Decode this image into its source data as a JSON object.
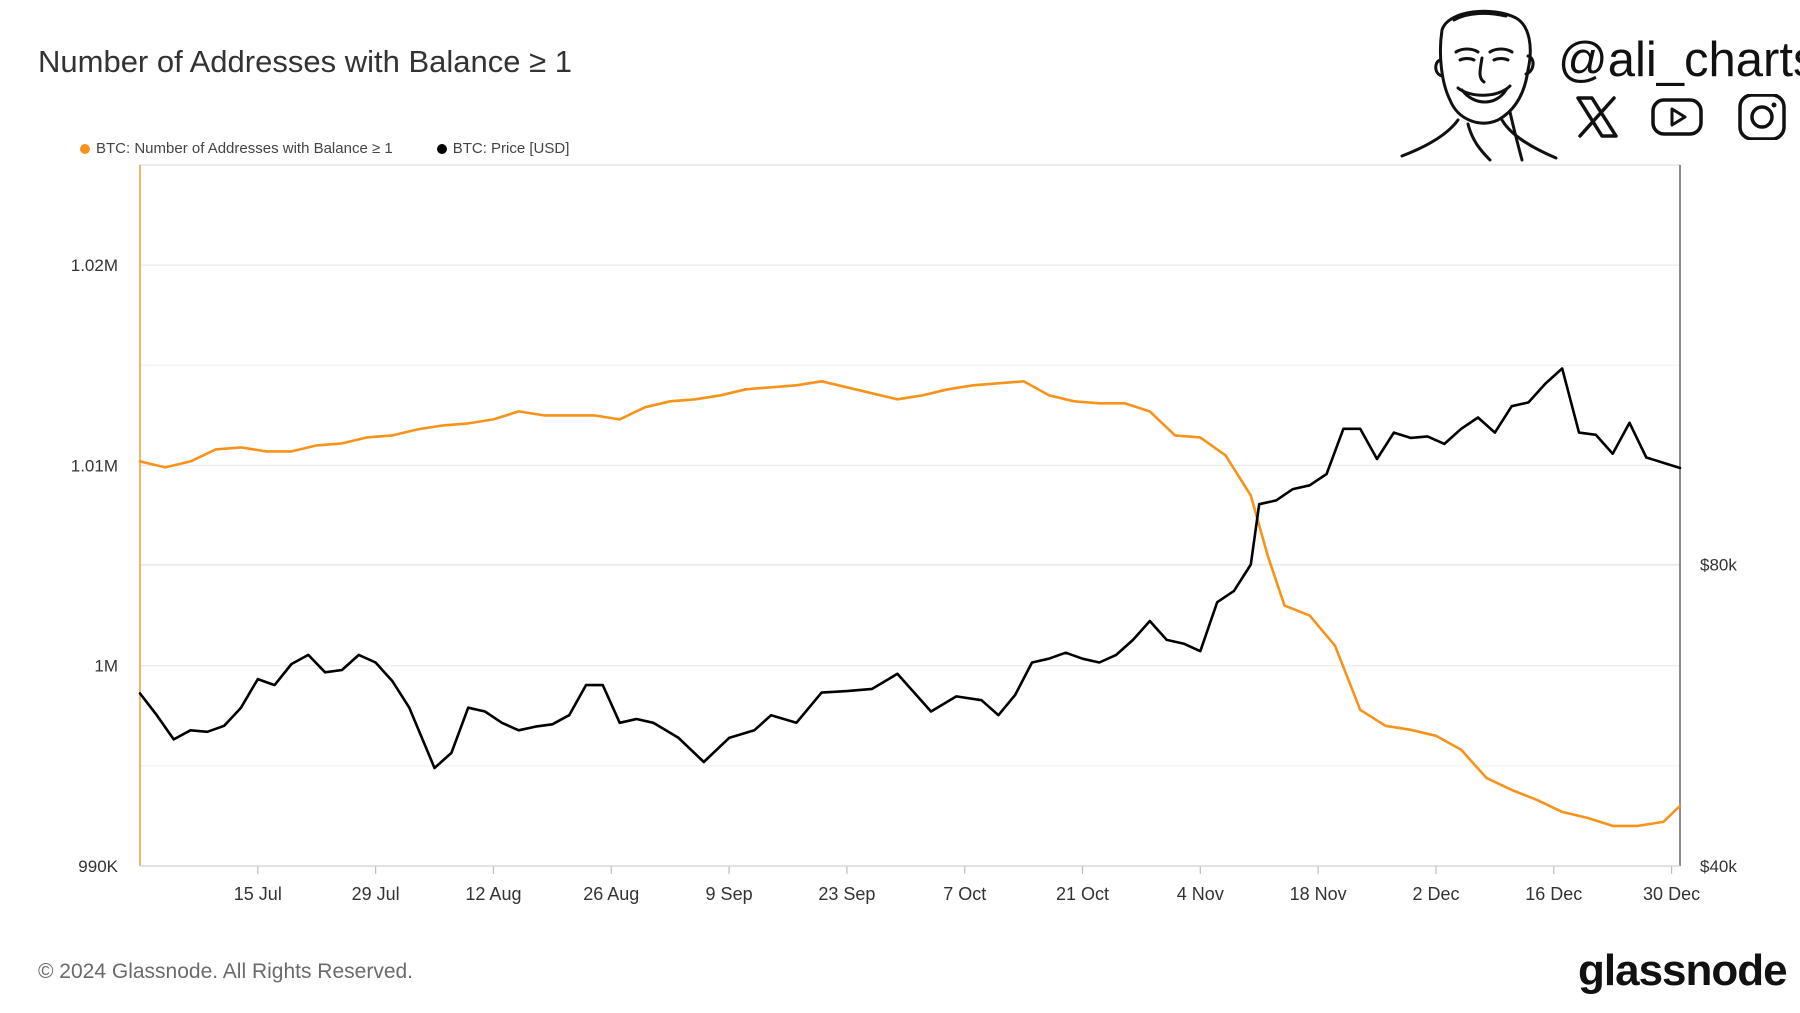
{
  "header": {
    "title": "Number of Addresses with Balance ≥ 1",
    "handle": "@ali_charts"
  },
  "social_icons": [
    "x-icon",
    "youtube-icon",
    "instagram-icon"
  ],
  "legend": [
    {
      "label": "BTC: Number of Addresses with Balance ≥ 1",
      "color": "#f7931a"
    },
    {
      "label": "BTC: Price [USD]",
      "color": "#000000"
    }
  ],
  "footer": {
    "copyright": "© 2024 Glassnode. All Rights Reserved.",
    "brand": "glassnode"
  },
  "chart_data": {
    "type": "line",
    "x_start": "2024-07-01",
    "x_end": "2024-12-31",
    "xticks": [
      "15 Jul",
      "29 Jul",
      "12 Aug",
      "26 Aug",
      "9 Sep",
      "23 Sep",
      "7 Oct",
      "21 Oct",
      "4 Nov",
      "18 Nov",
      "2 Dec",
      "16 Dec",
      "30 Dec"
    ],
    "y_left": {
      "ticks": [
        "990K",
        "1M",
        "1.01M",
        "1.02M"
      ],
      "tick_values": [
        990000,
        1000000,
        1010000,
        1020000
      ],
      "ylim": [
        990000,
        1025000
      ]
    },
    "y_right": {
      "ticks": [
        "$40k",
        "$80k"
      ],
      "tick_values": [
        40000,
        80000
      ],
      "ylim": [
        40000,
        133000
      ]
    },
    "series": [
      {
        "name": "BTC: Number of Addresses with Balance ≥ 1",
        "axis": "left",
        "color": "#f7931a",
        "points": [
          [
            "2024-07-01",
            1010200
          ],
          [
            "2024-07-04",
            1009900
          ],
          [
            "2024-07-07",
            1010200
          ],
          [
            "2024-07-10",
            1010800
          ],
          [
            "2024-07-13",
            1010900
          ],
          [
            "2024-07-16",
            1010700
          ],
          [
            "2024-07-19",
            1010700
          ],
          [
            "2024-07-22",
            1011000
          ],
          [
            "2024-07-25",
            1011100
          ],
          [
            "2024-07-28",
            1011400
          ],
          [
            "2024-07-31",
            1011500
          ],
          [
            "2024-08-03",
            1011800
          ],
          [
            "2024-08-06",
            1012000
          ],
          [
            "2024-08-09",
            1012100
          ],
          [
            "2024-08-12",
            1012300
          ],
          [
            "2024-08-15",
            1012700
          ],
          [
            "2024-08-18",
            1012500
          ],
          [
            "2024-08-21",
            1012500
          ],
          [
            "2024-08-24",
            1012500
          ],
          [
            "2024-08-27",
            1012300
          ],
          [
            "2024-08-30",
            1012900
          ],
          [
            "2024-09-02",
            1013200
          ],
          [
            "2024-09-05",
            1013300
          ],
          [
            "2024-09-08",
            1013500
          ],
          [
            "2024-09-11",
            1013800
          ],
          [
            "2024-09-14",
            1013900
          ],
          [
            "2024-09-17",
            1014000
          ],
          [
            "2024-09-20",
            1014200
          ],
          [
            "2024-09-23",
            1013900
          ],
          [
            "2024-09-26",
            1013600
          ],
          [
            "2024-09-29",
            1013300
          ],
          [
            "2024-10-02",
            1013500
          ],
          [
            "2024-10-05",
            1013800
          ],
          [
            "2024-10-08",
            1014000
          ],
          [
            "2024-10-11",
            1014100
          ],
          [
            "2024-10-14",
            1014200
          ],
          [
            "2024-10-17",
            1013500
          ],
          [
            "2024-10-20",
            1013200
          ],
          [
            "2024-10-23",
            1013100
          ],
          [
            "2024-10-26",
            1013100
          ],
          [
            "2024-10-29",
            1012700
          ],
          [
            "2024-11-01",
            1011500
          ],
          [
            "2024-11-04",
            1011400
          ],
          [
            "2024-11-07",
            1010500
          ],
          [
            "2024-11-10",
            1008500
          ],
          [
            "2024-11-12",
            1005500
          ],
          [
            "2024-11-14",
            1003000
          ],
          [
            "2024-11-17",
            1002500
          ],
          [
            "2024-11-20",
            1001000
          ],
          [
            "2024-11-23",
            997800
          ],
          [
            "2024-11-26",
            997000
          ],
          [
            "2024-11-29",
            996800
          ],
          [
            "2024-12-02",
            996500
          ],
          [
            "2024-12-05",
            995800
          ],
          [
            "2024-12-08",
            994400
          ],
          [
            "2024-12-11",
            993800
          ],
          [
            "2024-12-14",
            993300
          ],
          [
            "2024-12-17",
            992700
          ],
          [
            "2024-12-20",
            992400
          ],
          [
            "2024-12-23",
            992000
          ],
          [
            "2024-12-26",
            992000
          ],
          [
            "2024-12-29",
            992200
          ],
          [
            "2024-12-31",
            993000
          ]
        ]
      },
      {
        "name": "BTC: Price [USD]",
        "axis": "right",
        "color": "#000000",
        "points": [
          [
            "2024-07-01",
            62900
          ],
          [
            "2024-07-03",
            60000
          ],
          [
            "2024-07-05",
            56800
          ],
          [
            "2024-07-07",
            58000
          ],
          [
            "2024-07-09",
            57800
          ],
          [
            "2024-07-11",
            58600
          ],
          [
            "2024-07-13",
            61000
          ],
          [
            "2024-07-15",
            64800
          ],
          [
            "2024-07-17",
            64000
          ],
          [
            "2024-07-19",
            66800
          ],
          [
            "2024-07-21",
            68000
          ],
          [
            "2024-07-23",
            65700
          ],
          [
            "2024-07-25",
            66000
          ],
          [
            "2024-07-27",
            68000
          ],
          [
            "2024-07-29",
            67000
          ],
          [
            "2024-07-31",
            64500
          ],
          [
            "2024-08-02",
            61000
          ],
          [
            "2024-08-05",
            53000
          ],
          [
            "2024-08-07",
            55000
          ],
          [
            "2024-08-09",
            61000
          ],
          [
            "2024-08-11",
            60500
          ],
          [
            "2024-08-13",
            59000
          ],
          [
            "2024-08-15",
            58000
          ],
          [
            "2024-08-17",
            58500
          ],
          [
            "2024-08-19",
            58800
          ],
          [
            "2024-08-21",
            60000
          ],
          [
            "2024-08-23",
            64000
          ],
          [
            "2024-08-25",
            64000
          ],
          [
            "2024-08-27",
            59000
          ],
          [
            "2024-08-29",
            59500
          ],
          [
            "2024-08-31",
            59000
          ],
          [
            "2024-09-03",
            57000
          ],
          [
            "2024-09-06",
            53800
          ],
          [
            "2024-09-09",
            57000
          ],
          [
            "2024-09-12",
            58000
          ],
          [
            "2024-09-14",
            60000
          ],
          [
            "2024-09-17",
            59000
          ],
          [
            "2024-09-20",
            63000
          ],
          [
            "2024-09-23",
            63200
          ],
          [
            "2024-09-26",
            63500
          ],
          [
            "2024-09-29",
            65500
          ],
          [
            "2024-10-01",
            63000
          ],
          [
            "2024-10-03",
            60500
          ],
          [
            "2024-10-06",
            62500
          ],
          [
            "2024-10-09",
            62000
          ],
          [
            "2024-10-11",
            60000
          ],
          [
            "2024-10-13",
            62700
          ],
          [
            "2024-10-15",
            67000
          ],
          [
            "2024-10-17",
            67500
          ],
          [
            "2024-10-19",
            68300
          ],
          [
            "2024-10-21",
            67500
          ],
          [
            "2024-10-23",
            67000
          ],
          [
            "2024-10-25",
            68000
          ],
          [
            "2024-10-27",
            70000
          ],
          [
            "2024-10-29",
            72500
          ],
          [
            "2024-10-31",
            70000
          ],
          [
            "2024-11-02",
            69500
          ],
          [
            "2024-11-04",
            68500
          ],
          [
            "2024-11-06",
            75000
          ],
          [
            "2024-11-08",
            76500
          ],
          [
            "2024-11-10",
            80000
          ],
          [
            "2024-11-11",
            88000
          ],
          [
            "2024-11-13",
            88500
          ],
          [
            "2024-11-15",
            90000
          ],
          [
            "2024-11-17",
            90500
          ],
          [
            "2024-11-19",
            92000
          ],
          [
            "2024-11-21",
            98000
          ],
          [
            "2024-11-23",
            98000
          ],
          [
            "2024-11-25",
            94000
          ],
          [
            "2024-11-27",
            97500
          ],
          [
            "2024-11-29",
            96800
          ],
          [
            "2024-12-01",
            97000
          ],
          [
            "2024-12-03",
            96000
          ],
          [
            "2024-12-05",
            98000
          ],
          [
            "2024-12-07",
            99500
          ],
          [
            "2024-12-09",
            97500
          ],
          [
            "2024-12-11",
            101000
          ],
          [
            "2024-12-13",
            101500
          ],
          [
            "2024-12-15",
            104000
          ],
          [
            "2024-12-17",
            106000
          ],
          [
            "2024-12-19",
            97500
          ],
          [
            "2024-12-21",
            97200
          ],
          [
            "2024-12-23",
            94700
          ],
          [
            "2024-12-25",
            98800
          ],
          [
            "2024-12-27",
            94200
          ],
          [
            "2024-12-29",
            93500
          ],
          [
            "2024-12-31",
            92800
          ]
        ]
      }
    ],
    "grid": true,
    "legend_position": "top-left"
  }
}
